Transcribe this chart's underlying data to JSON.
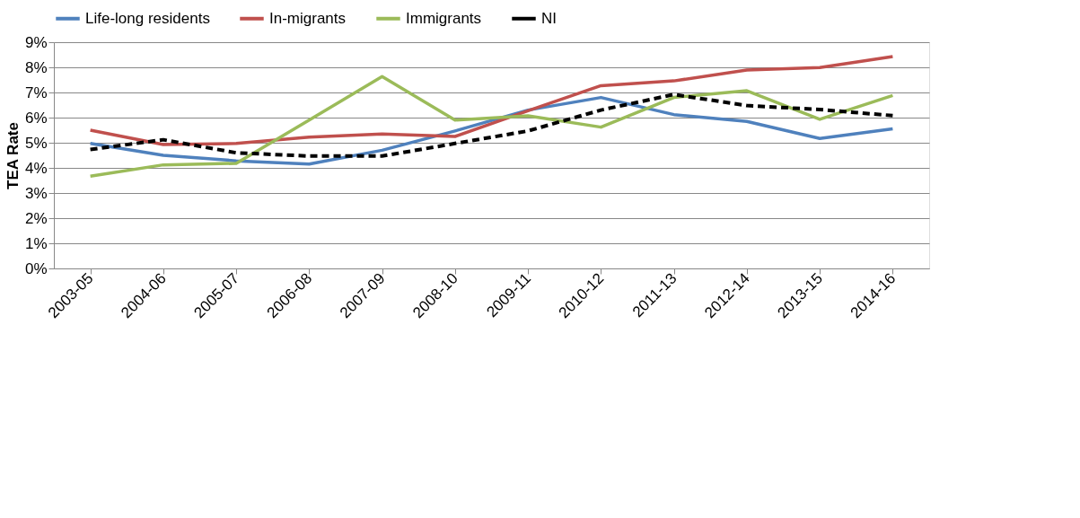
{
  "chart_data": {
    "type": "line",
    "ylabel": "TEA Rate",
    "categories": [
      "2003-05",
      "2004-06",
      "2005-07",
      "2006-08",
      "2007-09",
      "2008-10",
      "2009-11",
      "2010-12",
      "2011-13",
      "2012-14",
      "2013-15",
      "2014-16"
    ],
    "series": [
      {
        "name": "Life-long residents",
        "color": "#4f81bd",
        "line_style": "solid",
        "values": [
          4.97,
          4.5,
          4.28,
          4.15,
          4.7,
          5.47,
          6.3,
          6.8,
          6.12,
          5.85,
          5.17,
          5.55
        ]
      },
      {
        "name": "In-migrants",
        "color": "#c0504d",
        "line_style": "solid",
        "values": [
          5.5,
          4.93,
          4.97,
          5.22,
          5.35,
          5.25,
          6.27,
          7.27,
          7.46,
          7.89,
          7.99,
          8.43
        ]
      },
      {
        "name": "Immigrants",
        "color": "#9bbb59",
        "line_style": "solid",
        "values": [
          3.67,
          4.12,
          4.18,
          5.9,
          7.63,
          5.9,
          6.07,
          5.62,
          6.8,
          7.07,
          5.93,
          6.88
        ]
      },
      {
        "name": "NI",
        "color": "#000000",
        "line_style": "dashed",
        "values": [
          4.73,
          5.12,
          4.6,
          4.47,
          4.47,
          4.97,
          5.47,
          6.3,
          6.92,
          6.48,
          6.32,
          6.08
        ]
      }
    ],
    "ylim": [
      0,
      9
    ],
    "yticks": [
      {
        "value": 0,
        "label": "0%"
      },
      {
        "value": 1,
        "label": "1%"
      },
      {
        "value": 2,
        "label": "2%"
      },
      {
        "value": 3,
        "label": "3%"
      },
      {
        "value": 4,
        "label": "4%"
      },
      {
        "value": 5,
        "label": "5%"
      },
      {
        "value": 6,
        "label": "6%"
      },
      {
        "value": 7,
        "label": "7%"
      },
      {
        "value": 8,
        "label": "8%"
      },
      {
        "value": 9,
        "label": "9%"
      }
    ],
    "grid": "y",
    "legend": "top",
    "marker": "none"
  }
}
